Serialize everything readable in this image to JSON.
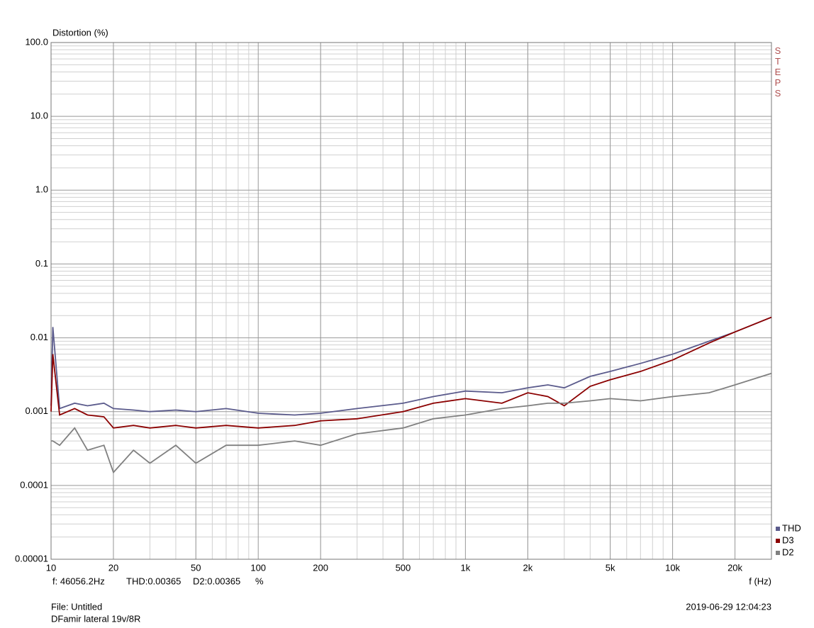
{
  "chart_data": {
    "type": "line",
    "y_label": "Distortion (%)",
    "x_label": "f (Hz)",
    "side_text": "STEPS",
    "log_x": true,
    "log_y": true,
    "grid": true,
    "minor_grid": true,
    "legend_position": "bottom-right",
    "xlim": [
      10,
      30000
    ],
    "ylim": [
      1e-05,
      100
    ],
    "xticks": [
      10,
      20,
      50,
      100,
      200,
      500,
      {
        "value": 1000,
        "label": "1k"
      },
      {
        "value": 2000,
        "label": "2k"
      },
      {
        "value": 5000,
        "label": "5k"
      },
      {
        "value": 10000,
        "label": "10k"
      },
      {
        "value": 20000,
        "label": "20k"
      }
    ],
    "yticks": [
      {
        "value": 100,
        "label": "100.0"
      },
      {
        "value": 10,
        "label": "10.0"
      },
      {
        "value": 1,
        "label": "1.0"
      },
      0.1,
      0.01,
      0.001,
      0.0001,
      {
        "value": 1e-05,
        "label": "0.00001"
      }
    ],
    "x": [
      10,
      10.2,
      11,
      13,
      15,
      18,
      20,
      25,
      30,
      40,
      50,
      70,
      100,
      150,
      200,
      300,
      500,
      700,
      1000,
      1500,
      2000,
      2500,
      3000,
      4000,
      5000,
      7000,
      10000,
      15000,
      20000,
      30000
    ],
    "series": [
      {
        "name": "THD",
        "color": "#5b5b8c",
        "values": [
          0.0012,
          0.014,
          0.0011,
          0.0013,
          0.0012,
          0.0013,
          0.0011,
          0.00105,
          0.001,
          0.00105,
          0.001,
          0.0011,
          0.00095,
          0.0009,
          0.00095,
          0.0011,
          0.0013,
          0.0016,
          0.0019,
          0.0018,
          0.0021,
          0.0023,
          0.0021,
          0.003,
          0.0035,
          0.0045,
          0.006,
          0.009,
          0.012,
          0.019
        ]
      },
      {
        "name": "D3",
        "color": "#8b0000",
        "values": [
          0.001,
          0.006,
          0.0009,
          0.0011,
          0.0009,
          0.00085,
          0.0006,
          0.00065,
          0.0006,
          0.00065,
          0.0006,
          0.00065,
          0.0006,
          0.00065,
          0.00075,
          0.0008,
          0.001,
          0.0013,
          0.0015,
          0.0013,
          0.0018,
          0.0016,
          0.0012,
          0.0022,
          0.0027,
          0.0035,
          0.005,
          0.0085,
          0.012,
          0.019
        ]
      },
      {
        "name": "D2",
        "color": "#808080",
        "values": [
          0.0004,
          0.0004,
          0.00035,
          0.0006,
          0.0003,
          0.00035,
          0.00015,
          0.0003,
          0.0002,
          0.00035,
          0.0002,
          0.00035,
          0.00035,
          0.0004,
          0.00035,
          0.0005,
          0.0006,
          0.0008,
          0.0009,
          0.0011,
          0.0012,
          0.0013,
          0.0013,
          0.0014,
          0.0015,
          0.0014,
          0.0016,
          0.0018,
          0.0023,
          0.0033
        ]
      }
    ],
    "readout": {
      "frequency": "f: 46056.2Hz",
      "thd": "THD:0.00365",
      "d2": "D2:0.00365",
      "unit": "%"
    },
    "footer": {
      "file": "File: Untitled",
      "description": "DFamir lateral 19v/8R",
      "timestamp": "2019-06-29 12:04:23"
    }
  }
}
